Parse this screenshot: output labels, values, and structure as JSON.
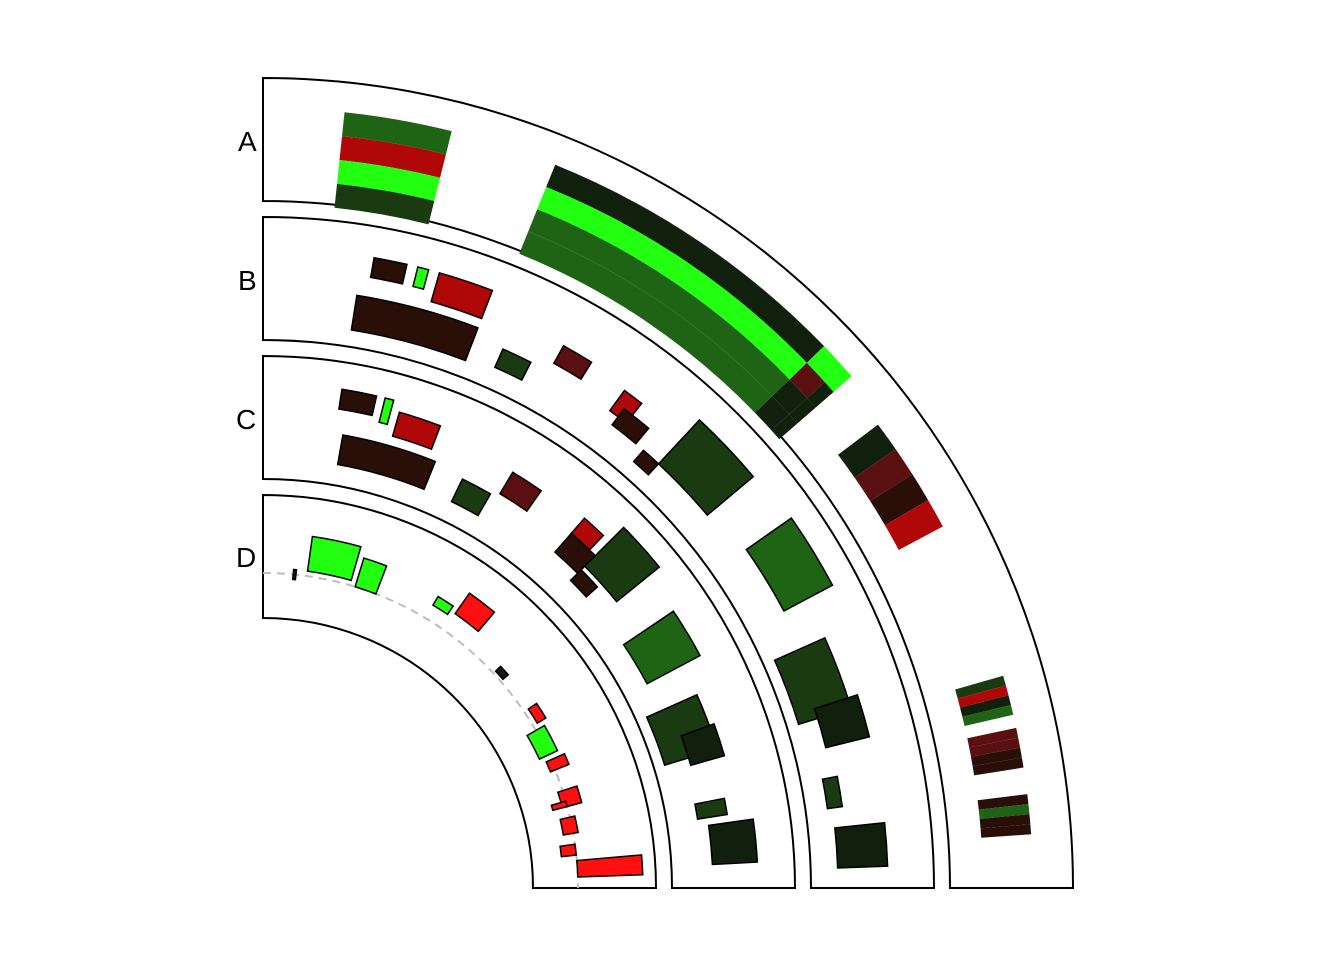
{
  "labels": {
    "A": "A",
    "B": "B",
    "C": "C",
    "D": "D"
  },
  "colors": {
    "outline": "#000000",
    "baseline": "#bdbdbd",
    "bright_green": "#22ff10",
    "mid_green": "#1e6414",
    "dark_green": "#1a3a12",
    "very_dark_green": "#111f0d",
    "red": "#ff1010",
    "dark_red": "#b00808",
    "brown_red": "#5a1010",
    "dark_brown": "#2a0e08"
  }
}
